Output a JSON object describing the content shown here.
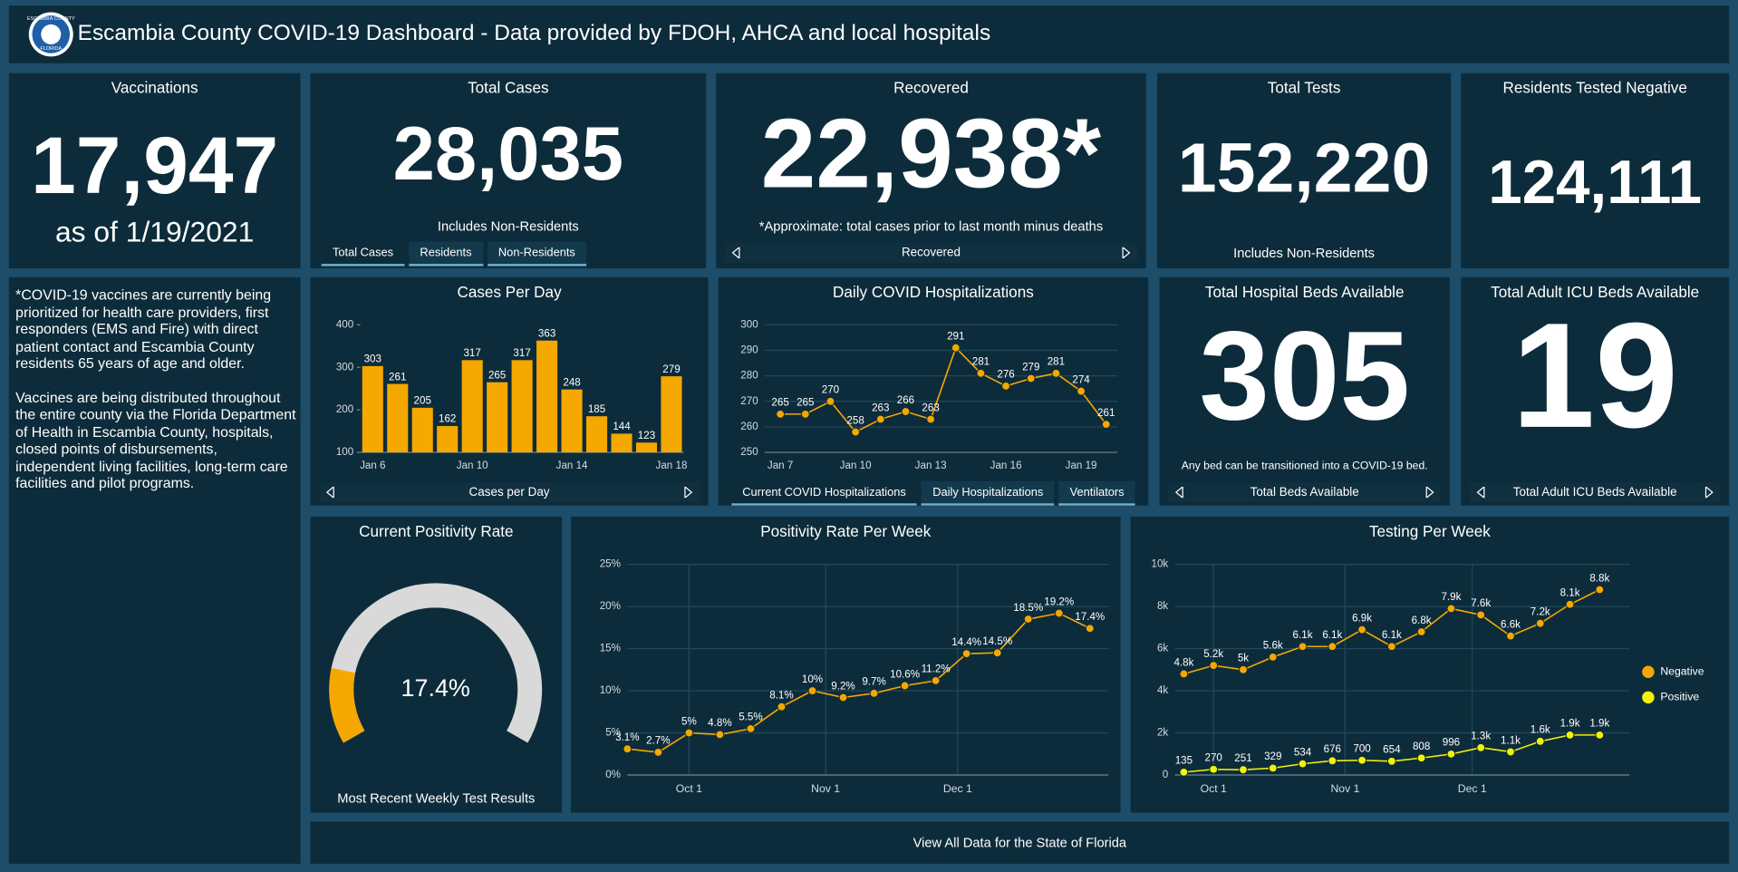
{
  "header": {
    "logo_top": "ESCAMBIA COUNTY",
    "logo_bottom": "FLORIDA",
    "title": "Escambia County COVID-19 Dashboard - Data provided by FDOH, AHCA and local hospitals"
  },
  "panels": {
    "vaccinations": {
      "title": "Vaccinations",
      "value": "17,947",
      "subtitle": "as of 1/19/2021"
    },
    "total_cases": {
      "title": "Total Cases",
      "value": "28,035",
      "subtitle": "Includes Non-Residents",
      "tabs": [
        "Total Cases",
        "Residents",
        "Non-Residents"
      ]
    },
    "recovered": {
      "title": "Recovered",
      "value": "22,938*",
      "subtitle": "*Approximate: total cases prior to last month minus deaths",
      "nav": "Recovered"
    },
    "total_tests": {
      "title": "Total Tests",
      "value": "152,220",
      "subtitle": "Includes Non-Residents"
    },
    "residents_negative": {
      "title": "Residents Tested Negative",
      "value": "124,111"
    },
    "hospital_beds": {
      "title": "Total Hospital Beds Available",
      "value": "305",
      "subtitle": "Any bed can be transitioned into a COVID-19 bed.",
      "nav": "Total Beds Available"
    },
    "icu_beds": {
      "title": "Total Adult ICU Beds Available",
      "value": "19",
      "nav": "Total Adult ICU Beds Available"
    }
  },
  "note": {
    "paragraphs": [
      "*COVID-19 vaccines are currently being prioritized for health care providers, first responders (EMS and Fire) with direct patient contact and Escambia County residents 65 years of age and older.",
      "Vaccines are being distributed throughout the entire county via the Florida Department of Health in Escambia County, hospitals, closed points of disbursements, independent living facilities, long-term care facilities and pilot programs."
    ]
  },
  "chart_data": [
    {
      "type": "bar",
      "title": "Cases Per Day",
      "nav": "Cases per Day",
      "categories": [
        "Jan 6",
        null,
        null,
        null,
        "Jan 10",
        null,
        null,
        null,
        "Jan 14",
        null,
        null,
        null,
        "Jan 18"
      ],
      "values": [
        303,
        261,
        205,
        162,
        317,
        265,
        317,
        363,
        248,
        185,
        144,
        123,
        279
      ],
      "color": "#f5a800",
      "ylim": [
        100,
        400
      ],
      "yticks": [
        100,
        200,
        300,
        400
      ],
      "grid": false
    },
    {
      "type": "line",
      "title": "Daily COVID Hospitalizations",
      "tabs": [
        "Current COVID Hospitalizations",
        "Daily Hospitalizations",
        "Ventilators"
      ],
      "categories": [
        "Jan 7",
        null,
        null,
        "Jan 10",
        null,
        null,
        "Jan 13",
        null,
        null,
        "Jan 16",
        null,
        null,
        "Jan 19",
        null
      ],
      "values": [
        265,
        265,
        270,
        258,
        263,
        266,
        263,
        291,
        281,
        276,
        279,
        281,
        274,
        261
      ],
      "color": "#f5a800",
      "ylim": [
        250,
        300
      ],
      "yticks": [
        250,
        260,
        270,
        280,
        290,
        300
      ],
      "grid": true
    },
    {
      "type": "gauge",
      "title": "Current Positivity Rate",
      "caption": "Most Recent Weekly Test Results",
      "value": 17.4,
      "value_label": "17.4%",
      "ylim": [
        0,
        100
      ],
      "color": "#f5a800",
      "track_color": "#d9d9d9"
    },
    {
      "type": "line",
      "title": "Positivity Rate Per Week",
      "values": [
        3.1,
        2.7,
        5,
        4.8,
        5.5,
        8.1,
        10,
        9.2,
        9.7,
        10.6,
        11.2,
        14.4,
        14.5,
        18.5,
        19.2,
        17.4
      ],
      "value_labels": [
        "3.1%",
        "2.7%",
        "5%",
        "4.8%",
        "5.5%",
        "8.1%",
        "10%",
        "9.2%",
        "9.7%",
        "10.6%",
        "11.2%",
        "14.4%",
        "14.5%",
        "18.5%",
        "19.2%",
        "17.4%"
      ],
      "color": "#f5a800",
      "xlim": [
        0,
        15.6
      ],
      "xticks": [
        {
          "value": 2,
          "label": "Oct 1"
        },
        {
          "value": 6.43,
          "label": "Nov 1"
        },
        {
          "value": 10.71,
          "label": "Dec 1"
        }
      ],
      "ylim": [
        0,
        25
      ],
      "yticks": [
        {
          "value": 0,
          "label": "0%"
        },
        {
          "value": 5,
          "label": "5%"
        },
        {
          "value": 10,
          "label": "10%"
        },
        {
          "value": 15,
          "label": "15%"
        },
        {
          "value": 20,
          "label": "20%"
        },
        {
          "value": 25,
          "label": "25%"
        }
      ],
      "grid": true
    },
    {
      "type": "line",
      "title": "Testing Per Week",
      "legend": "right",
      "series": [
        {
          "name": "Negative",
          "color": "#f5a800",
          "values": [
            4800,
            5200,
            5000,
            5600,
            6100,
            6100,
            6900,
            6100,
            6800,
            7900,
            7600,
            6600,
            7200,
            8100,
            8800
          ],
          "value_labels": [
            "4.8k",
            "5.2k",
            "5k",
            "5.6k",
            "6.1k",
            "6.1k",
            "6.9k",
            "6.1k",
            "6.8k",
            "7.9k",
            "7.6k",
            "6.6k",
            "7.2k",
            "8.1k",
            "8.8k"
          ]
        },
        {
          "name": "Positive",
          "color": "#f2f20a",
          "values": [
            135,
            270,
            251,
            329,
            534,
            676,
            700,
            654,
            808,
            996,
            1300,
            1100,
            1600,
            1900,
            1900
          ],
          "value_labels": [
            "135",
            "270",
            "251",
            "329",
            "534",
            "676",
            "700",
            "654",
            "808",
            "996",
            "1.3k",
            "1.1k",
            "1.6k",
            "1.9k",
            "1.9k"
          ]
        }
      ],
      "xlim": [
        -0.3,
        15
      ],
      "xticks": [
        {
          "value": 1,
          "label": "Oct 1"
        },
        {
          "value": 5.43,
          "label": "Nov 1"
        },
        {
          "value": 9.71,
          "label": "Dec 1"
        }
      ],
      "ylim": [
        0,
        10000
      ],
      "yticks": [
        0,
        {
          "value": 2000,
          "label": "2k"
        },
        {
          "value": 4000,
          "label": "4k"
        },
        {
          "value": 6000,
          "label": "6k"
        },
        {
          "value": 8000,
          "label": "8k"
        },
        {
          "value": 10000,
          "label": "10k"
        }
      ],
      "grid": true
    }
  ],
  "footer": {
    "link": "View All Data for the State of Florida"
  }
}
